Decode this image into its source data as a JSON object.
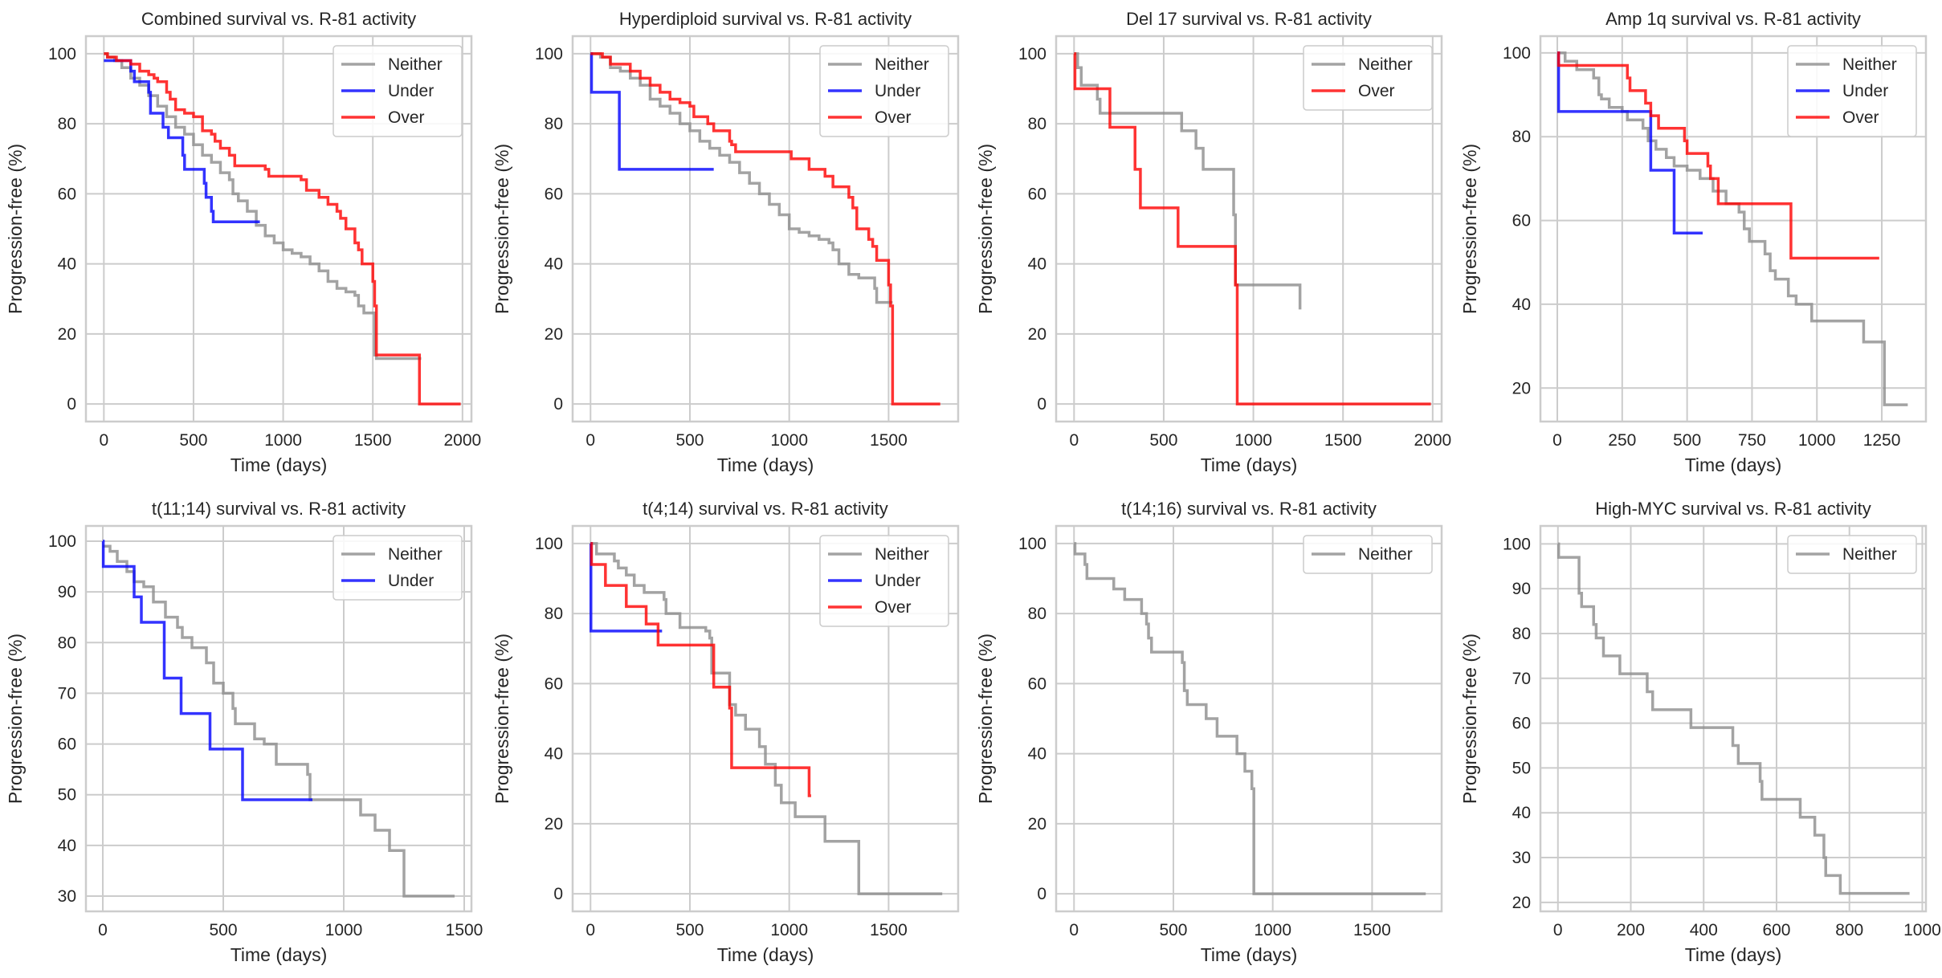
{
  "figure": {
    "colors": {
      "Neither": "#8c8c8c",
      "Under": "#0000ff",
      "Over": "#ff0000",
      "grid": "#cccccc",
      "text": "#262626"
    }
  },
  "chart_data": [
    {
      "type": "line",
      "title": "Combined survival vs. R-81 activity",
      "xlabel": "Time (days)",
      "ylabel": "Progression-free (%)",
      "xlim": [
        -100,
        2050
      ],
      "ylim": [
        -5,
        105
      ],
      "xticks": [
        0,
        500,
        1000,
        1500,
        2000
      ],
      "yticks": [
        0,
        20,
        40,
        60,
        80,
        100
      ],
      "grid": true,
      "legend": "top-right",
      "series": [
        {
          "name": "Neither",
          "x": [
            0,
            20,
            60,
            100,
            150,
            200,
            250,
            300,
            350,
            400,
            450,
            500,
            550,
            600,
            650,
            700,
            720,
            750,
            800,
            850,
            900,
            950,
            1000,
            1050,
            1100,
            1150,
            1200,
            1250,
            1300,
            1350,
            1400,
            1420,
            1450,
            1500,
            1510,
            1520,
            1770
          ],
          "y": [
            100,
            99,
            98,
            96,
            93,
            91,
            88,
            85,
            82,
            79,
            77,
            74,
            71,
            69,
            66,
            64,
            60,
            58,
            55,
            51,
            48,
            46,
            44,
            43,
            42,
            40,
            38,
            35,
            33,
            32,
            31,
            28,
            26,
            26,
            14,
            13,
            13
          ]
        },
        {
          "name": "Under",
          "x": [
            0,
            130,
            150,
            170,
            250,
            260,
            320,
            330,
            360,
            440,
            450,
            560,
            570,
            580,
            600,
            610,
            870
          ],
          "y": [
            98,
            98,
            95,
            92,
            89,
            83,
            83,
            79,
            76,
            71,
            67,
            63,
            59,
            59,
            55,
            52,
            52
          ]
        },
        {
          "name": "Over",
          "x": [
            0,
            20,
            70,
            150,
            200,
            250,
            280,
            300,
            350,
            370,
            400,
            450,
            500,
            550,
            600,
            620,
            650,
            700,
            730,
            900,
            920,
            1000,
            1100,
            1130,
            1200,
            1250,
            1300,
            1320,
            1350,
            1400,
            1420,
            1440,
            1500,
            1510,
            1520,
            1750,
            1760,
            1990
          ],
          "y": [
            100,
            99,
            98,
            97,
            95,
            94,
            93,
            92,
            89,
            87,
            84,
            83,
            82,
            78,
            77,
            75,
            73,
            71,
            68,
            67,
            65,
            65,
            64,
            61,
            59,
            57,
            55,
            53,
            50,
            46,
            44,
            40,
            35,
            28,
            14,
            14,
            0,
            0
          ]
        }
      ]
    },
    {
      "type": "line",
      "title": "Hyperdiploid survival vs. R-81 activity",
      "xlabel": "Time (days)",
      "ylabel": "Progression-free (%)",
      "xlim": [
        -90,
        1850
      ],
      "ylim": [
        -5,
        105
      ],
      "xticks": [
        0,
        500,
        1000,
        1500
      ],
      "yticks": [
        0,
        20,
        40,
        60,
        80,
        100
      ],
      "grid": true,
      "legend": "top-right",
      "series": [
        {
          "name": "Neither",
          "x": [
            0,
            50,
            100,
            150,
            200,
            250,
            300,
            350,
            400,
            450,
            500,
            550,
            600,
            650,
            700,
            750,
            800,
            850,
            900,
            950,
            1000,
            1050,
            1100,
            1150,
            1200,
            1220,
            1250,
            1300,
            1350,
            1400,
            1430,
            1440,
            1520
          ],
          "y": [
            100,
            99,
            96,
            95,
            93,
            91,
            87,
            85,
            83,
            80,
            78,
            75,
            73,
            71,
            69,
            66,
            63,
            60,
            57,
            54,
            50,
            49,
            48,
            47,
            46,
            44,
            40,
            37,
            36,
            36,
            33,
            29,
            29
          ]
        },
        {
          "name": "Under",
          "x": [
            0,
            5,
            140,
            145,
            620
          ],
          "y": [
            100,
            89,
            89,
            67,
            67
          ]
        },
        {
          "name": "Over",
          "x": [
            0,
            60,
            100,
            150,
            200,
            250,
            300,
            350,
            400,
            450,
            500,
            520,
            550,
            590,
            620,
            700,
            710,
            730,
            1000,
            1010,
            1100,
            1180,
            1220,
            1300,
            1320,
            1340,
            1400,
            1420,
            1440,
            1500,
            1510,
            1520,
            1760
          ],
          "y": [
            100,
            99,
            97,
            97,
            95,
            93,
            91,
            89,
            87,
            86,
            85,
            82,
            82,
            80,
            78,
            75,
            74,
            72,
            72,
            70,
            67,
            65,
            62,
            59,
            56,
            50,
            47,
            45,
            41,
            34,
            28,
            0,
            0
          ]
        }
      ]
    },
    {
      "type": "line",
      "title": "Del 17 survival vs. R-81 activity",
      "xlabel": "Time (days)",
      "ylabel": "Progression-free (%)",
      "xlim": [
        -100,
        2050
      ],
      "ylim": [
        -5,
        105
      ],
      "xticks": [
        0,
        500,
        1000,
        1500,
        2000
      ],
      "yticks": [
        0,
        20,
        40,
        60,
        80,
        100
      ],
      "grid": true,
      "legend": "top-right",
      "series": [
        {
          "name": "Neither",
          "x": [
            0,
            20,
            40,
            130,
            145,
            600,
            680,
            720,
            890,
            900,
            1260
          ],
          "y": [
            100,
            96,
            91,
            87,
            83,
            78,
            73,
            67,
            54,
            34,
            27
          ]
        },
        {
          "name": "Over",
          "x": [
            0,
            5,
            200,
            340,
            370,
            580,
            900,
            910,
            1990
          ],
          "y": [
            100,
            90,
            79,
            67,
            56,
            45,
            34,
            0,
            0
          ]
        }
      ]
    },
    {
      "type": "line",
      "title": "Amp 1q survival vs. R-81 activity",
      "xlabel": "Time (days)",
      "ylabel": "Progression-free (%)",
      "xlim": [
        -65,
        1420
      ],
      "ylim": [
        12,
        104
      ],
      "xticks": [
        0,
        250,
        500,
        750,
        1000,
        1250
      ],
      "yticks": [
        20,
        40,
        60,
        80,
        100
      ],
      "grid": true,
      "legend": "top-right",
      "series": [
        {
          "name": "Neither",
          "x": [
            0,
            30,
            75,
            140,
            160,
            170,
            200,
            250,
            270,
            330,
            350,
            380,
            420,
            450,
            500,
            550,
            600,
            650,
            700,
            720,
            740,
            800,
            820,
            840,
            890,
            920,
            980,
            1180,
            1260,
            1350
          ],
          "y": [
            100,
            98,
            96,
            94,
            90,
            89,
            87,
            86,
            84,
            82,
            79,
            77,
            75,
            73,
            72,
            70,
            67,
            64,
            62,
            58,
            55,
            52,
            48,
            46,
            42,
            40,
            36,
            31,
            16,
            16
          ]
        },
        {
          "name": "Under",
          "x": [
            0,
            5,
            355,
            360,
            445,
            450,
            560
          ],
          "y": [
            100,
            86,
            86,
            72,
            72,
            57,
            57
          ]
        },
        {
          "name": "Over",
          "x": [
            0,
            5,
            270,
            280,
            340,
            360,
            390,
            490,
            500,
            580,
            590,
            620,
            900,
            1240
          ],
          "y": [
            100,
            97,
            94,
            91,
            88,
            85,
            82,
            79,
            76,
            73,
            70,
            64,
            51,
            51
          ]
        }
      ]
    },
    {
      "type": "line",
      "title": "t(11;14) survival vs. R-81 activity",
      "xlabel": "Time (days)",
      "ylabel": "Progression-free (%)",
      "xlim": [
        -70,
        1530
      ],
      "ylim": [
        27,
        103
      ],
      "xticks": [
        0,
        500,
        1000,
        1500
      ],
      "yticks": [
        30,
        40,
        50,
        60,
        70,
        80,
        90,
        100
      ],
      "grid": true,
      "legend": "top-right",
      "series": [
        {
          "name": "Neither",
          "x": [
            0,
            30,
            60,
            100,
            130,
            170,
            210,
            260,
            310,
            330,
            370,
            430,
            460,
            500,
            540,
            550,
            630,
            670,
            720,
            850,
            860,
            1070,
            1130,
            1190,
            1250,
            1460
          ],
          "y": [
            99,
            98,
            96,
            94,
            92,
            91,
            88,
            85,
            83,
            81,
            79,
            76,
            72,
            70,
            67,
            64,
            61,
            60,
            56,
            54,
            49,
            46,
            43,
            39,
            30,
            30
          ]
        },
        {
          "name": "Under",
          "x": [
            0,
            2,
            125,
            130,
            160,
            250,
            255,
            320,
            325,
            440,
            445,
            575,
            580,
            870
          ],
          "y": [
            100,
            95,
            95,
            89,
            84,
            84,
            73,
            73,
            66,
            66,
            59,
            59,
            49,
            49
          ]
        }
      ]
    },
    {
      "type": "line",
      "title": "t(4;14) survival vs. R-81 activity",
      "xlabel": "Time (days)",
      "ylabel": "Progression-free (%)",
      "xlim": [
        -90,
        1850
      ],
      "ylim": [
        -5,
        105
      ],
      "xticks": [
        0,
        500,
        1000,
        1500
      ],
      "yticks": [
        0,
        20,
        40,
        60,
        80,
        100
      ],
      "grid": true,
      "legend": "top-right",
      "series": [
        {
          "name": "Neither",
          "x": [
            0,
            30,
            120,
            140,
            180,
            220,
            270,
            370,
            380,
            450,
            580,
            600,
            610,
            700,
            730,
            780,
            850,
            880,
            930,
            960,
            1030,
            1180,
            1350,
            1770
          ],
          "y": [
            100,
            97,
            95,
            93,
            91,
            88,
            86,
            84,
            80,
            76,
            75,
            73,
            63,
            54,
            51,
            47,
            42,
            37,
            31,
            26,
            22,
            15,
            0,
            0
          ]
        },
        {
          "name": "Under",
          "x": [
            0,
            2,
            360
          ],
          "y": [
            100,
            75,
            75
          ]
        },
        {
          "name": "Over",
          "x": [
            0,
            5,
            75,
            180,
            280,
            340,
            620,
            700,
            710,
            1100,
            1110
          ],
          "y": [
            100,
            94,
            88,
            82,
            77,
            71,
            59,
            53,
            36,
            28,
            28
          ]
        }
      ]
    },
    {
      "type": "line",
      "title": "t(14;16) survival vs. R-81 activity",
      "xlabel": "Time (days)",
      "ylabel": "Progression-free (%)",
      "xlim": [
        -90,
        1850
      ],
      "ylim": [
        -5,
        105
      ],
      "xticks": [
        0,
        500,
        1000,
        1500
      ],
      "yticks": [
        0,
        20,
        40,
        60,
        80,
        100
      ],
      "grid": true,
      "legend": "top-right",
      "series": [
        {
          "name": "Neither",
          "x": [
            0,
            5,
            55,
            65,
            200,
            255,
            340,
            365,
            375,
            390,
            545,
            555,
            570,
            665,
            720,
            820,
            860,
            895,
            905,
            1770
          ],
          "y": [
            100,
            97,
            94,
            90,
            87,
            84,
            80,
            77,
            73,
            69,
            66,
            58,
            54,
            50,
            45,
            40,
            35,
            30,
            0,
            0
          ]
        }
      ]
    },
    {
      "type": "line",
      "title": "High-MYC survival vs. R-81 activity",
      "xlabel": "Time (days)",
      "ylabel": "Progression-free (%)",
      "xlim": [
        -48,
        1010
      ],
      "ylim": [
        18,
        104
      ],
      "xticks": [
        0,
        200,
        400,
        600,
        800,
        1000
      ],
      "yticks": [
        20,
        30,
        40,
        50,
        60,
        70,
        80,
        90,
        100
      ],
      "grid": true,
      "legend": "top-right",
      "series": [
        {
          "name": "Neither",
          "x": [
            0,
            2,
            58,
            65,
            98,
            105,
            125,
            170,
            245,
            260,
            365,
            480,
            495,
            555,
            560,
            665,
            705,
            730,
            735,
            775,
            965
          ],
          "y": [
            100,
            97,
            89,
            86,
            82,
            79,
            75,
            71,
            67,
            63,
            59,
            55,
            51,
            47,
            43,
            39,
            35,
            30,
            26,
            22,
            22
          ]
        }
      ]
    }
  ]
}
